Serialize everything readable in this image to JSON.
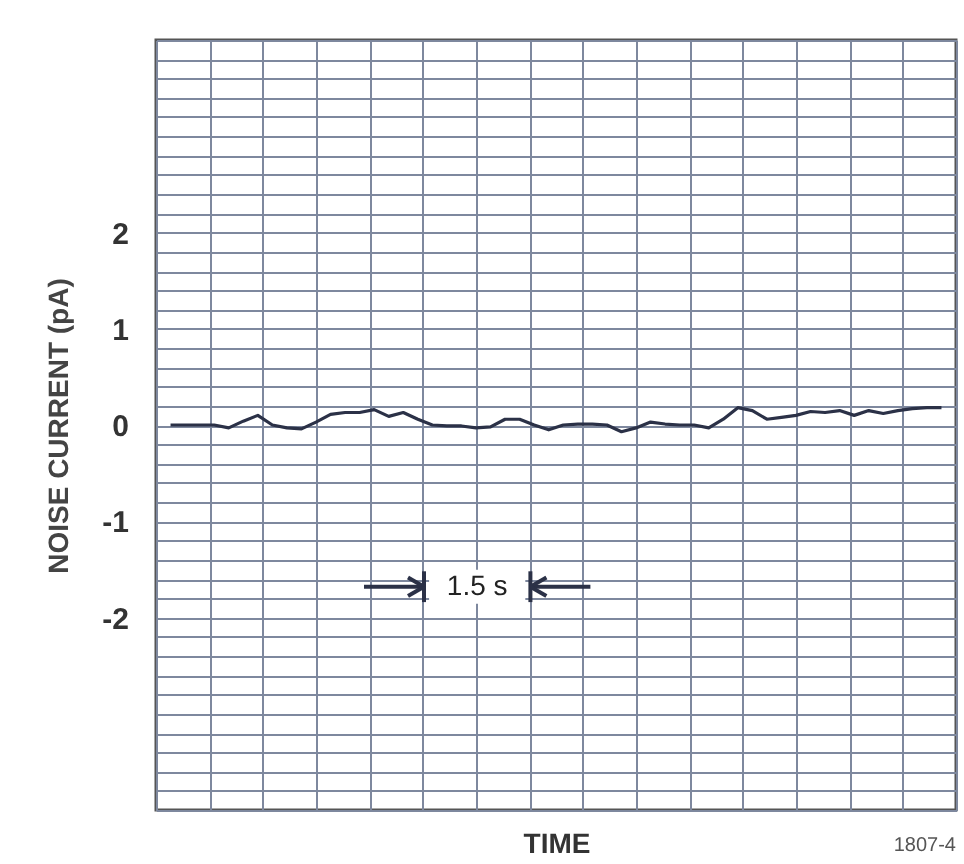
{
  "chart_data": {
    "type": "line",
    "xlabel": "TIME",
    "ylabel": "NOISE CURRENT (pA)",
    "annotations": [
      "1.5 s",
      "1807-4"
    ],
    "categories": [
      null,
      null,
      null,
      null,
      null,
      null,
      null,
      null,
      null,
      null,
      null,
      null,
      null,
      null,
      null,
      null,
      null,
      null,
      null,
      null,
      null,
      null,
      null,
      null,
      null,
      null,
      null,
      null,
      null,
      null,
      null,
      null,
      null,
      null,
      null,
      null,
      null,
      null,
      null,
      null,
      null,
      null,
      null,
      null,
      null,
      null,
      null,
      null,
      null,
      null,
      null,
      null,
      null,
      null
    ],
    "series": [
      {
        "color": "#2b3147",
        "values": [
          0,
          0,
          0,
          0,
          -0.03,
          0.04,
          0.1,
          0,
          -0.03,
          -0.04,
          0.03,
          0.11,
          0.13,
          0.13,
          0.16,
          0.09,
          0.13,
          0.06,
          0,
          -0.01,
          -0.01,
          -0.03,
          -0.02,
          0.06,
          0.06,
          0,
          -0.05,
          0,
          0.01,
          0.01,
          0,
          -0.07,
          -0.03,
          0.03,
          0.01,
          0,
          0,
          -0.03,
          0.06,
          0.18,
          0.15,
          0.06,
          0.08,
          0.1,
          0.14,
          0.13,
          0.15,
          0.1,
          0.15,
          0.12,
          0.15,
          0.17,
          0.18,
          0.18
        ]
      }
    ],
    "ylim": [
      -4,
      4
    ],
    "yticks": [
      {
        "value": -4,
        "label": null
      },
      {
        "value": -3.8,
        "label": null
      },
      {
        "value": -3.6,
        "label": null
      },
      {
        "value": -3.4,
        "label": null
      },
      {
        "value": -3.2,
        "label": null
      },
      {
        "value": -3,
        "label": null
      },
      {
        "value": -2.8,
        "label": null
      },
      {
        "value": -2.6,
        "label": null
      },
      {
        "value": -2.4,
        "label": null
      },
      {
        "value": -2.2,
        "label": null
      },
      -2,
      {
        "value": -1.8,
        "label": null
      },
      {
        "value": -1.6,
        "label": null
      },
      {
        "value": -1.4,
        "label": null
      },
      {
        "value": -1.2,
        "label": null
      },
      -1,
      {
        "value": -0.8,
        "label": null
      },
      {
        "value": -0.6,
        "label": null
      },
      {
        "value": -0.4,
        "label": null
      },
      {
        "value": -0.2,
        "label": null
      },
      0,
      {
        "value": 0.2,
        "label": null
      },
      {
        "value": 0.4,
        "label": null
      },
      {
        "value": 0.6,
        "label": null
      },
      {
        "value": 0.8,
        "label": null
      },
      1,
      {
        "value": 1.2,
        "label": null
      },
      {
        "value": 1.4,
        "label": null
      },
      {
        "value": 1.6,
        "label": null
      },
      {
        "value": 1.8,
        "label": null
      },
      2,
      {
        "value": 2.2,
        "label": null
      },
      {
        "value": 2.4,
        "label": null
      },
      {
        "value": 2.6,
        "label": null
      },
      {
        "value": 2.8,
        "label": null
      },
      {
        "value": 3,
        "label": null
      },
      {
        "value": 3.2,
        "label": null
      },
      {
        "value": 3.4,
        "label": null
      },
      {
        "value": 3.6,
        "label": null
      },
      {
        "value": 3.8,
        "label": null
      },
      {
        "value": 4,
        "label": null
      }
    ],
    "grid": true
  }
}
